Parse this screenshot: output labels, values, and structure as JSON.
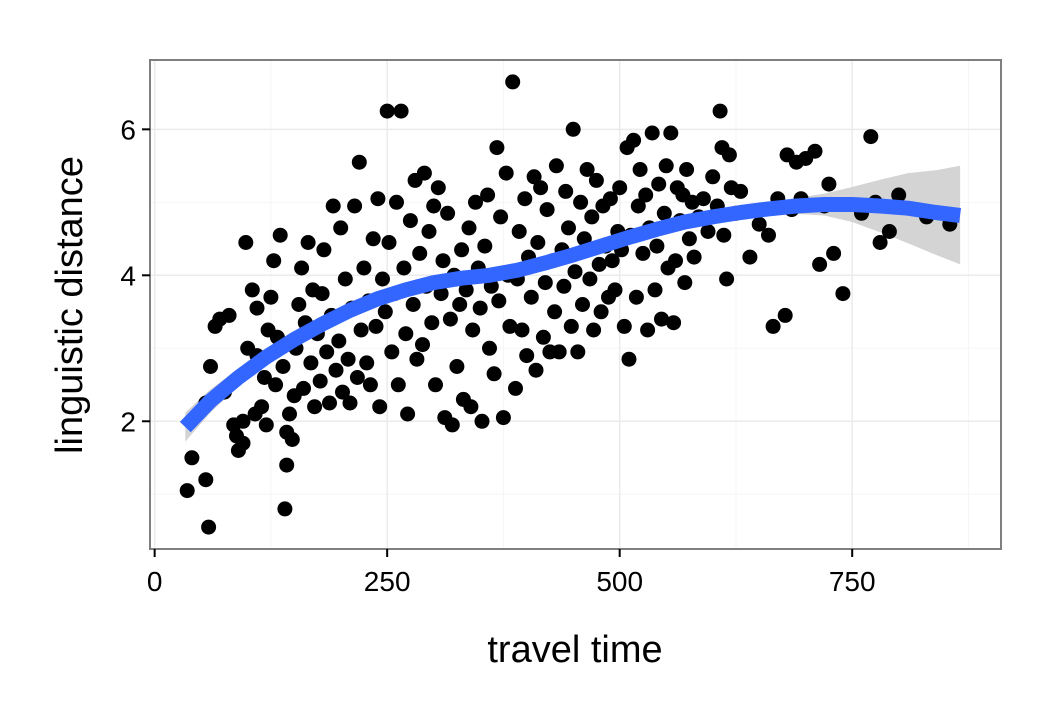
{
  "chart_data": {
    "type": "scatter",
    "title": "",
    "xlabel": "travel time",
    "ylabel": "linguistic distance",
    "xlim": [
      -5,
      910
    ],
    "ylim": [
      0.25,
      6.95
    ],
    "x_ticks": [
      0,
      250,
      500,
      750
    ],
    "y_ticks": [
      2,
      4,
      6
    ],
    "x_tick_labels": [
      "0",
      "250",
      "500",
      "750"
    ],
    "y_tick_labels": [
      "2",
      "4",
      "6"
    ],
    "grid": true,
    "legend": "none",
    "colors": {
      "points": "#000000",
      "smooth_line": "#3366ff",
      "confidence_band": "#cccccc",
      "panel_border": "#7f7f7f",
      "grid_major": "#ebebeb",
      "grid_minor": "#f5f5f5"
    },
    "points": [
      [
        35,
        1.05
      ],
      [
        40,
        1.5
      ],
      [
        55,
        1.2
      ],
      [
        58,
        0.55
      ],
      [
        55,
        2.25
      ],
      [
        60,
        2.75
      ],
      [
        65,
        3.3
      ],
      [
        70,
        3.4
      ],
      [
        75,
        2.4
      ],
      [
        80,
        3.45
      ],
      [
        85,
        1.95
      ],
      [
        88,
        1.8
      ],
      [
        90,
        1.6
      ],
      [
        95,
        1.7
      ],
      [
        95,
        2.0
      ],
      [
        98,
        4.45
      ],
      [
        100,
        3.0
      ],
      [
        105,
        3.8
      ],
      [
        108,
        2.1
      ],
      [
        110,
        2.9
      ],
      [
        110,
        3.55
      ],
      [
        115,
        2.2
      ],
      [
        118,
        2.6
      ],
      [
        120,
        1.95
      ],
      [
        122,
        3.25
      ],
      [
        125,
        3.7
      ],
      [
        128,
        4.2
      ],
      [
        130,
        2.5
      ],
      [
        132,
        3.15
      ],
      [
        135,
        4.55
      ],
      [
        138,
        2.75
      ],
      [
        140,
        0.8
      ],
      [
        142,
        1.4
      ],
      [
        142,
        1.85
      ],
      [
        145,
        2.1
      ],
      [
        148,
        1.75
      ],
      [
        150,
        2.35
      ],
      [
        152,
        3.0
      ],
      [
        155,
        3.6
      ],
      [
        158,
        4.1
      ],
      [
        160,
        2.45
      ],
      [
        162,
        3.35
      ],
      [
        165,
        4.45
      ],
      [
        168,
        2.8
      ],
      [
        170,
        3.8
      ],
      [
        172,
        2.2
      ],
      [
        175,
        3.2
      ],
      [
        178,
        2.55
      ],
      [
        180,
        3.75
      ],
      [
        182,
        4.35
      ],
      [
        185,
        2.95
      ],
      [
        188,
        2.25
      ],
      [
        190,
        3.45
      ],
      [
        192,
        4.95
      ],
      [
        195,
        2.7
      ],
      [
        198,
        3.1
      ],
      [
        200,
        4.65
      ],
      [
        202,
        2.4
      ],
      [
        205,
        3.95
      ],
      [
        208,
        2.85
      ],
      [
        210,
        2.25
      ],
      [
        212,
        3.55
      ],
      [
        215,
        4.95
      ],
      [
        218,
        2.6
      ],
      [
        220,
        5.55
      ],
      [
        222,
        3.25
      ],
      [
        225,
        4.1
      ],
      [
        228,
        2.8
      ],
      [
        230,
        3.65
      ],
      [
        232,
        2.5
      ],
      [
        235,
        4.5
      ],
      [
        238,
        3.3
      ],
      [
        240,
        5.05
      ],
      [
        242,
        2.2
      ],
      [
        245,
        3.95
      ],
      [
        248,
        3.5
      ],
      [
        250,
        6.25
      ],
      [
        252,
        4.45
      ],
      [
        255,
        2.95
      ],
      [
        258,
        3.75
      ],
      [
        260,
        5.0
      ],
      [
        262,
        2.5
      ],
      [
        265,
        6.25
      ],
      [
        268,
        4.1
      ],
      [
        270,
        3.2
      ],
      [
        272,
        2.1
      ],
      [
        275,
        4.75
      ],
      [
        278,
        3.6
      ],
      [
        280,
        5.3
      ],
      [
        282,
        2.85
      ],
      [
        285,
        4.3
      ],
      [
        288,
        3.05
      ],
      [
        290,
        5.4
      ],
      [
        292,
        3.85
      ],
      [
        295,
        4.6
      ],
      [
        298,
        3.35
      ],
      [
        300,
        4.95
      ],
      [
        302,
        2.5
      ],
      [
        305,
        5.2
      ],
      [
        308,
        3.75
      ],
      [
        310,
        4.2
      ],
      [
        312,
        2.05
      ],
      [
        315,
        4.85
      ],
      [
        318,
        3.4
      ],
      [
        320,
        1.95
      ],
      [
        322,
        4.0
      ],
      [
        325,
        2.75
      ],
      [
        328,
        3.6
      ],
      [
        330,
        4.35
      ],
      [
        332,
        2.3
      ],
      [
        335,
        3.8
      ],
      [
        338,
        4.65
      ],
      [
        340,
        2.2
      ],
      [
        342,
        3.25
      ],
      [
        345,
        5.0
      ],
      [
        348,
        4.1
      ],
      [
        350,
        3.55
      ],
      [
        352,
        2.0
      ],
      [
        355,
        4.4
      ],
      [
        358,
        5.1
      ],
      [
        360,
        3.0
      ],
      [
        362,
        3.85
      ],
      [
        365,
        2.65
      ],
      [
        368,
        5.75
      ],
      [
        370,
        3.65
      ],
      [
        372,
        4.8
      ],
      [
        375,
        2.05
      ],
      [
        378,
        5.4
      ],
      [
        380,
        4.0
      ],
      [
        382,
        3.3
      ],
      [
        385,
        6.65
      ],
      [
        388,
        2.45
      ],
      [
        390,
        3.95
      ],
      [
        392,
        4.6
      ],
      [
        395,
        3.25
      ],
      [
        398,
        5.05
      ],
      [
        400,
        2.9
      ],
      [
        402,
        4.25
      ],
      [
        405,
        3.7
      ],
      [
        408,
        5.35
      ],
      [
        410,
        2.7
      ],
      [
        412,
        4.45
      ],
      [
        415,
        5.2
      ],
      [
        418,
        3.15
      ],
      [
        420,
        3.9
      ],
      [
        422,
        4.9
      ],
      [
        425,
        2.95
      ],
      [
        428,
        4.2
      ],
      [
        430,
        3.5
      ],
      [
        432,
        5.5
      ],
      [
        435,
        2.95
      ],
      [
        438,
        4.35
      ],
      [
        440,
        3.85
      ],
      [
        442,
        5.15
      ],
      [
        445,
        4.65
      ],
      [
        448,
        3.3
      ],
      [
        450,
        6.0
      ],
      [
        452,
        4.05
      ],
      [
        455,
        2.95
      ],
      [
        458,
        5.0
      ],
      [
        460,
        3.6
      ],
      [
        462,
        4.5
      ],
      [
        465,
        5.45
      ],
      [
        468,
        3.95
      ],
      [
        470,
        4.8
      ],
      [
        472,
        3.25
      ],
      [
        475,
        5.3
      ],
      [
        478,
        4.15
      ],
      [
        480,
        3.5
      ],
      [
        482,
        4.95
      ],
      [
        485,
        4.4
      ],
      [
        488,
        3.7
      ],
      [
        490,
        5.05
      ],
      [
        492,
        4.2
      ],
      [
        495,
        3.8
      ],
      [
        498,
        4.6
      ],
      [
        500,
        5.2
      ],
      [
        502,
        4.35
      ],
      [
        505,
        3.3
      ],
      [
        508,
        5.75
      ],
      [
        510,
        2.85
      ],
      [
        512,
        4.55
      ],
      [
        515,
        5.85
      ],
      [
        518,
        3.7
      ],
      [
        520,
        4.95
      ],
      [
        522,
        5.45
      ],
      [
        525,
        4.3
      ],
      [
        528,
        5.1
      ],
      [
        530,
        3.25
      ],
      [
        532,
        4.65
      ],
      [
        535,
        5.95
      ],
      [
        538,
        3.8
      ],
      [
        540,
        4.4
      ],
      [
        542,
        5.25
      ],
      [
        545,
        3.4
      ],
      [
        548,
        4.85
      ],
      [
        550,
        5.5
      ],
      [
        552,
        4.1
      ],
      [
        555,
        5.95
      ],
      [
        558,
        3.35
      ],
      [
        560,
        4.2
      ],
      [
        562,
        5.2
      ],
      [
        565,
        4.75
      ],
      [
        568,
        5.1
      ],
      [
        570,
        3.9
      ],
      [
        572,
        5.45
      ],
      [
        575,
        4.5
      ],
      [
        578,
        5.0
      ],
      [
        580,
        4.25
      ],
      [
        585,
        4.8
      ],
      [
        590,
        5.05
      ],
      [
        595,
        4.6
      ],
      [
        600,
        5.35
      ],
      [
        605,
        4.95
      ],
      [
        608,
        6.25
      ],
      [
        610,
        5.75
      ],
      [
        612,
        4.55
      ],
      [
        615,
        3.95
      ],
      [
        618,
        5.65
      ],
      [
        620,
        5.2
      ],
      [
        625,
        4.85
      ],
      [
        630,
        5.15
      ],
      [
        640,
        4.25
      ],
      [
        650,
        4.7
      ],
      [
        660,
        4.55
      ],
      [
        665,
        3.3
      ],
      [
        670,
        5.05
      ],
      [
        678,
        3.45
      ],
      [
        680,
        5.65
      ],
      [
        685,
        4.9
      ],
      [
        690,
        5.55
      ],
      [
        695,
        5.05
      ],
      [
        700,
        5.6
      ],
      [
        710,
        5.7
      ],
      [
        715,
        4.15
      ],
      [
        720,
        4.95
      ],
      [
        725,
        5.25
      ],
      [
        730,
        4.3
      ],
      [
        740,
        3.75
      ],
      [
        760,
        4.85
      ],
      [
        770,
        5.9
      ],
      [
        775,
        5.0
      ],
      [
        780,
        4.45
      ],
      [
        790,
        4.6
      ],
      [
        800,
        5.1
      ],
      [
        830,
        4.8
      ],
      [
        855,
        4.7
      ]
    ],
    "smooth_fit": [
      [
        33,
        1.92
      ],
      [
        60,
        2.28
      ],
      [
        90,
        2.6
      ],
      [
        120,
        2.88
      ],
      [
        150,
        3.12
      ],
      [
        180,
        3.33
      ],
      [
        210,
        3.52
      ],
      [
        240,
        3.68
      ],
      [
        270,
        3.8
      ],
      [
        300,
        3.9
      ],
      [
        330,
        3.96
      ],
      [
        360,
        4.0
      ],
      [
        390,
        4.07
      ],
      [
        420,
        4.17
      ],
      [
        450,
        4.28
      ],
      [
        480,
        4.4
      ],
      [
        510,
        4.52
      ],
      [
        540,
        4.63
      ],
      [
        570,
        4.73
      ],
      [
        600,
        4.8
      ],
      [
        630,
        4.86
      ],
      [
        660,
        4.91
      ],
      [
        690,
        4.95
      ],
      [
        720,
        4.97
      ],
      [
        750,
        4.97
      ],
      [
        780,
        4.95
      ],
      [
        810,
        4.92
      ],
      [
        840,
        4.86
      ],
      [
        866,
        4.82
      ]
    ],
    "confidence_band": {
      "x": [
        33,
        60,
        90,
        120,
        150,
        180,
        210,
        240,
        270,
        300,
        330,
        360,
        390,
        420,
        450,
        480,
        510,
        540,
        570,
        600,
        630,
        660,
        690,
        720,
        750,
        780,
        810,
        840,
        866
      ],
      "lower": [
        1.72,
        2.12,
        2.48,
        2.78,
        3.04,
        3.26,
        3.45,
        3.61,
        3.73,
        3.83,
        3.89,
        3.93,
        3.99,
        4.09,
        4.2,
        4.32,
        4.44,
        4.55,
        4.65,
        4.72,
        4.78,
        4.82,
        4.84,
        4.82,
        4.73,
        4.59,
        4.44,
        4.28,
        4.15
      ],
      "upper": [
        2.12,
        2.44,
        2.72,
        2.98,
        3.2,
        3.4,
        3.59,
        3.75,
        3.87,
        3.97,
        4.03,
        4.07,
        4.15,
        4.25,
        4.36,
        4.48,
        4.6,
        4.71,
        4.81,
        4.88,
        4.94,
        5.0,
        5.06,
        5.12,
        5.21,
        5.31,
        5.4,
        5.44,
        5.5
      ]
    }
  }
}
